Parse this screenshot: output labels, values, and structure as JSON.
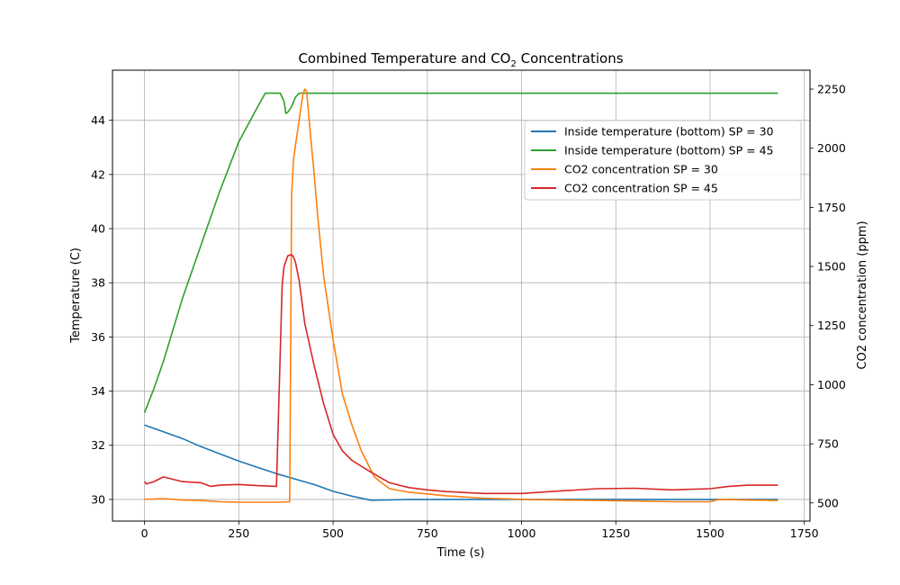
{
  "chart_data": {
    "type": "line",
    "title_main": "Combined Temperature and CO",
    "title_sub": "2",
    "title_tail": " Concentrations",
    "xlabel": "Time (s)",
    "ylabel_left": "Temperature (C)",
    "ylabel_right": "CO2 concentration (ppm)",
    "xlim": [
      -85,
      1765
    ],
    "ylim_left": [
      29.2,
      45.85
    ],
    "ylim_right": [
      423,
      2330
    ],
    "xticks": [
      0,
      250,
      500,
      750,
      1000,
      1250,
      1500,
      1750
    ],
    "yticks_left": [
      30,
      32,
      34,
      36,
      38,
      40,
      42,
      44
    ],
    "yticks_right": [
      500,
      750,
      1000,
      1250,
      1500,
      1750,
      2000,
      2250
    ],
    "grid": true,
    "legend_position": "upper right",
    "series": [
      {
        "name": "Inside temperature (bottom) SP = 30",
        "axis": "left",
        "color": "#1f77b4",
        "x": [
          0,
          50,
          100,
          150,
          200,
          250,
          300,
          350,
          400,
          450,
          500,
          550,
          600,
          650,
          700,
          800,
          900,
          1000,
          1100,
          1200,
          1300,
          1400,
          1500,
          1600,
          1680
        ],
        "y": [
          32.75,
          32.5,
          32.25,
          31.95,
          31.68,
          31.42,
          31.18,
          30.95,
          30.75,
          30.55,
          30.3,
          30.12,
          29.97,
          29.98,
          30.0,
          30.0,
          30.0,
          30.0,
          30.0,
          30.0,
          30.0,
          30.0,
          30.0,
          30.0,
          30.0
        ]
      },
      {
        "name": "Inside temperature (bottom) SP = 45",
        "axis": "left",
        "color": "#2ca02c",
        "x": [
          0,
          25,
          50,
          100,
          150,
          200,
          250,
          300,
          320,
          330,
          340,
          360,
          370,
          375,
          380,
          390,
          400,
          410,
          420,
          430,
          500,
          600,
          700,
          800,
          900,
          1000,
          1100,
          1200,
          1300,
          1400,
          1500,
          1600,
          1680
        ],
        "y": [
          33.2,
          34.1,
          35.1,
          37.4,
          39.4,
          41.4,
          43.2,
          44.5,
          45.0,
          45.0,
          45.0,
          45.0,
          44.7,
          44.25,
          44.3,
          44.5,
          44.85,
          45.0,
          45.0,
          45.0,
          45.0,
          45.0,
          45.0,
          45.0,
          45.0,
          45.0,
          45.0,
          45.0,
          45.0,
          45.0,
          45.0,
          45.0,
          45.0
        ]
      },
      {
        "name": "CO2 concentration SP = 30",
        "axis": "right",
        "color": "#ff7f0e",
        "x": [
          0,
          50,
          100,
          150,
          200,
          250,
          300,
          350,
          385,
          390,
          395,
          400,
          410,
          420,
          425,
          430,
          440,
          450,
          460,
          475,
          500,
          525,
          550,
          575,
          600,
          610,
          625,
          650,
          700,
          750,
          800,
          900,
          1000,
          1100,
          1200,
          1300,
          1400,
          1500,
          1525,
          1600,
          1680
        ],
        "y": [
          515,
          518,
          512,
          510,
          505,
          503,
          503,
          503,
          505,
          1800,
          1950,
          2010,
          2120,
          2230,
          2250,
          2240,
          2060,
          1890,
          1700,
          1460,
          1190,
          960,
          830,
          720,
          640,
          610,
          590,
          560,
          545,
          538,
          530,
          520,
          515,
          512,
          510,
          508,
          505,
          505,
          515,
          512,
          510
        ]
      },
      {
        "name": "CO2 concentration SP = 45",
        "axis": "right",
        "color": "#d62728",
        "x": [
          0,
          5,
          25,
          50,
          75,
          100,
          150,
          175,
          200,
          250,
          300,
          350,
          365,
          370,
          380,
          390,
          395,
          400,
          410,
          425,
          450,
          475,
          500,
          525,
          550,
          600,
          650,
          700,
          750,
          800,
          900,
          1000,
          1100,
          1200,
          1300,
          1400,
          1500,
          1550,
          1600,
          1680
        ],
        "y": [
          590,
          580,
          590,
          610,
          600,
          590,
          585,
          570,
          575,
          578,
          573,
          570,
          1420,
          1500,
          1545,
          1550,
          1540,
          1520,
          1440,
          1260,
          1080,
          920,
          790,
          720,
          680,
          630,
          585,
          565,
          555,
          548,
          540,
          540,
          550,
          560,
          562,
          555,
          560,
          570,
          575,
          575
        ]
      }
    ]
  }
}
